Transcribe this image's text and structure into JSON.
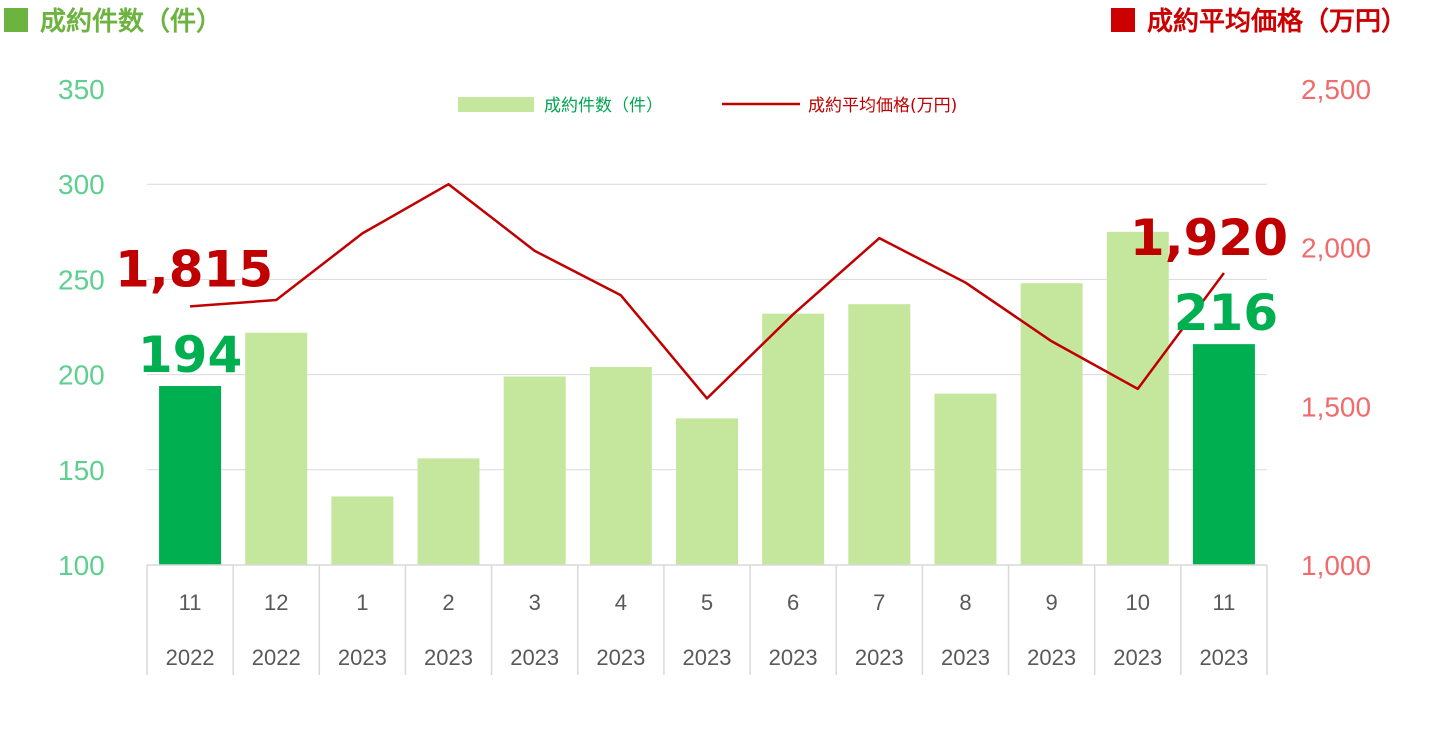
{
  "header": {
    "left_title": "成約件数（件）",
    "right_title": "成約平均価格（万円）"
  },
  "colors": {
    "bar_light": "#c5e69d",
    "bar_dark": "#00b050",
    "line": "#c00000",
    "left_axis": "#5fcf8f",
    "right_axis": "#f06b6b",
    "left_title": "#6db33f",
    "right_title": "#cc0000"
  },
  "chart_data": {
    "type": "bar+line",
    "categories": [
      {
        "month": "11",
        "year": "2022"
      },
      {
        "month": "12",
        "year": "2022"
      },
      {
        "month": "1",
        "year": "2023"
      },
      {
        "month": "2",
        "year": "2023"
      },
      {
        "month": "3",
        "year": "2023"
      },
      {
        "month": "4",
        "year": "2023"
      },
      {
        "month": "5",
        "year": "2023"
      },
      {
        "month": "6",
        "year": "2023"
      },
      {
        "month": "7",
        "year": "2023"
      },
      {
        "month": "8",
        "year": "2023"
      },
      {
        "month": "9",
        "year": "2023"
      },
      {
        "month": "10",
        "year": "2023"
      },
      {
        "month": "11",
        "year": "2023"
      }
    ],
    "series": [
      {
        "name": "成約件数（件）",
        "type": "bar",
        "axis": "left",
        "values": [
          194,
          222,
          136,
          156,
          199,
          204,
          177,
          232,
          237,
          190,
          248,
          275,
          216
        ],
        "highlighted": [
          0,
          12
        ]
      },
      {
        "name": "成約平均価格(万円)",
        "type": "line",
        "axis": "right",
        "values": [
          1815,
          1835,
          2045,
          2200,
          1990,
          1850,
          1525,
          1790,
          2030,
          1890,
          1705,
          1555,
          1920
        ]
      }
    ],
    "left_axis": {
      "min": 100,
      "max": 350,
      "step": 50,
      "tick_labels": [
        "100",
        "150",
        "200",
        "250",
        "300",
        "350"
      ]
    },
    "right_axis": {
      "min": 1000,
      "max": 2500,
      "step": 500,
      "tick_labels": [
        "1,000",
        "1,500",
        "2,000",
        "2,500"
      ]
    },
    "data_labels": [
      {
        "series": 0,
        "index": 0,
        "text": "194"
      },
      {
        "series": 0,
        "index": 12,
        "text": "216"
      },
      {
        "series": 1,
        "index": 0,
        "text": "1,815"
      },
      {
        "series": 1,
        "index": 12,
        "text": "1,920"
      }
    ],
    "legend": {
      "position": "top-center",
      "entries": [
        "成約件数（件）",
        "成約平均価格(万円)"
      ]
    },
    "grid": true
  }
}
